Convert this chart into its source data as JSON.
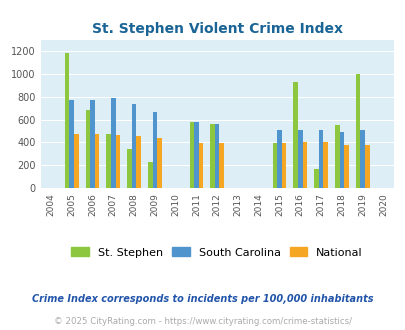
{
  "title": "St. Stephen Violent Crime Index",
  "years": [
    2004,
    2005,
    2006,
    2007,
    2008,
    2009,
    2010,
    2011,
    2012,
    2013,
    2014,
    2015,
    2016,
    2017,
    2018,
    2019,
    2020
  ],
  "st_stephen": [
    null,
    1180,
    680,
    475,
    340,
    230,
    null,
    580,
    560,
    null,
    null,
    395,
    930,
    165,
    550,
    1000,
    null
  ],
  "south_carolina": [
    null,
    770,
    770,
    790,
    740,
    665,
    null,
    580,
    560,
    null,
    null,
    505,
    505,
    510,
    490,
    510,
    null
  ],
  "national": [
    null,
    470,
    470,
    465,
    455,
    435,
    null,
    395,
    395,
    null,
    null,
    395,
    400,
    400,
    375,
    380,
    null
  ],
  "bar_color_st_stephen": "#8dc63f",
  "bar_color_south_carolina": "#4f94cd",
  "bar_color_national": "#f5a623",
  "plot_background": "#ddeef6",
  "title_color": "#1a6496",
  "ylim": [
    0,
    1300
  ],
  "yticks": [
    0,
    200,
    400,
    600,
    800,
    1000,
    1200
  ],
  "legend_labels": [
    "St. Stephen",
    "South Carolina",
    "National"
  ],
  "footnote1": "Crime Index corresponds to incidents per 100,000 inhabitants",
  "footnote2": "© 2025 CityRating.com - https://www.cityrating.com/crime-statistics/",
  "footnote_color1": "#2255aa",
  "footnote_color2": "#aaaaaa",
  "bar_width": 0.22
}
